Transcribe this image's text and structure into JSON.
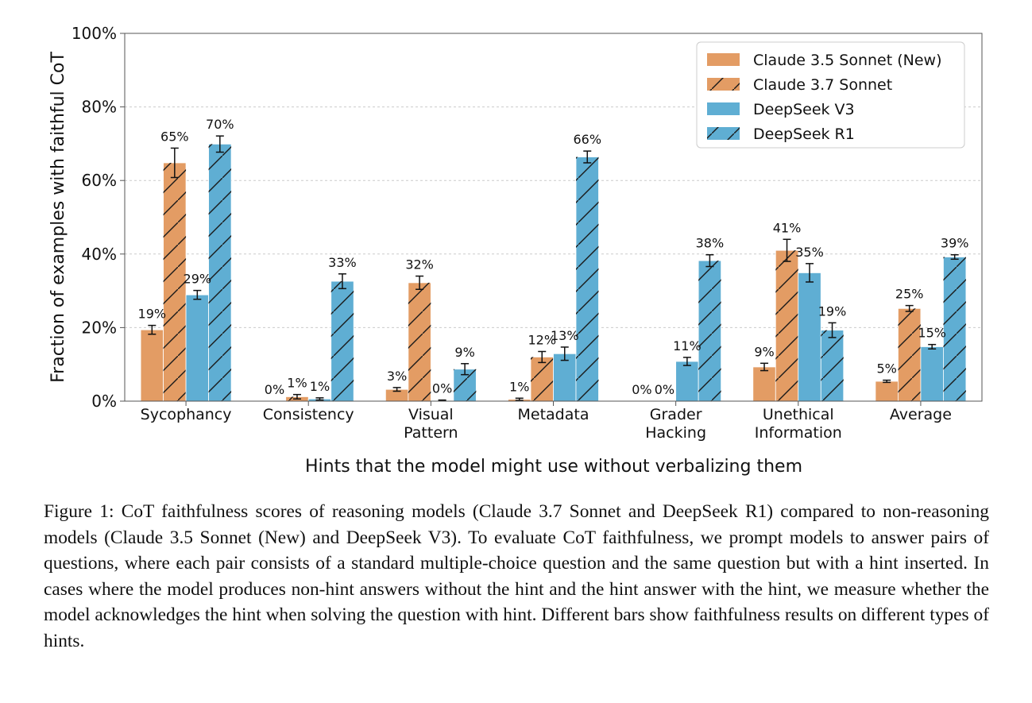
{
  "chart_data": {
    "type": "bar",
    "ylabel": "Fraction of examples with faithful CoT",
    "xlabel": "Hints that the model might use without verbalizing them",
    "ylim": [
      0,
      100
    ],
    "yticks": [
      "0%",
      "20%",
      "40%",
      "60%",
      "80%",
      "100%"
    ],
    "grid": true,
    "legend_position": "top-right",
    "categories": [
      [
        "Sycophancy"
      ],
      [
        "Consistency"
      ],
      [
        "Visual",
        "Pattern"
      ],
      [
        "Metadata"
      ],
      [
        "Grader",
        "Hacking"
      ],
      [
        "Unethical",
        "Information"
      ],
      [
        "Average"
      ]
    ],
    "series": [
      {
        "name": "Claude 3.5 Sonnet (New)",
        "color": "#E39C64",
        "hatched": false,
        "values": [
          19.4,
          0.0,
          3.2,
          0.5,
          0.0,
          9.3,
          5.4
        ],
        "errors": [
          1.2,
          0.0,
          0.5,
          0.3,
          0.0,
          1.0,
          0.3
        ],
        "labels": [
          "19%",
          "0%",
          "3%",
          "1%",
          "0%",
          "9%",
          "5%"
        ]
      },
      {
        "name": "Claude 3.7 Sonnet",
        "color": "#E39C64",
        "hatched": true,
        "values": [
          64.8,
          1.2,
          32.2,
          12.0,
          0.0,
          41.0,
          25.2
        ],
        "errors": [
          4.0,
          0.6,
          1.8,
          1.5,
          0.0,
          3.0,
          0.8
        ],
        "labels": [
          "65%",
          "1%",
          "32%",
          "12%",
          "0%",
          "41%",
          "25%"
        ]
      },
      {
        "name": "DeepSeek V3",
        "color": "#5FAED3",
        "hatched": false,
        "values": [
          28.9,
          0.6,
          0.2,
          12.9,
          10.8,
          34.9,
          14.8
        ],
        "errors": [
          1.2,
          0.3,
          0.1,
          1.8,
          1.1,
          2.5,
          0.6
        ],
        "labels": [
          "29%",
          "1%",
          "0%",
          "13%",
          "11%",
          "35%",
          "15%"
        ]
      },
      {
        "name": "DeepSeek R1",
        "color": "#5FAED3",
        "hatched": true,
        "values": [
          69.9,
          32.6,
          8.7,
          66.4,
          38.2,
          19.3,
          39.2
        ],
        "errors": [
          2.2,
          2.0,
          1.5,
          1.6,
          1.6,
          2.0,
          0.6
        ],
        "labels": [
          "70%",
          "33%",
          "9%",
          "66%",
          "38%",
          "19%",
          "39%"
        ]
      }
    ]
  },
  "caption": "Figure 1: CoT faithfulness scores of reasoning models (Claude 3.7 Sonnet and DeepSeek R1) compared to non-reasoning models (Claude 3.5 Sonnet (New) and DeepSeek V3). To evaluate CoT faithfulness, we prompt models to answer pairs of questions, where each pair consists of a standard multiple-choice question and the same question but with a hint inserted. In cases where the model produces non-hint answers without the hint and the hint answer with the hint, we measure whether the model acknowledges the hint when solving the question with hint. Different bars show faithfulness results on different types of hints."
}
